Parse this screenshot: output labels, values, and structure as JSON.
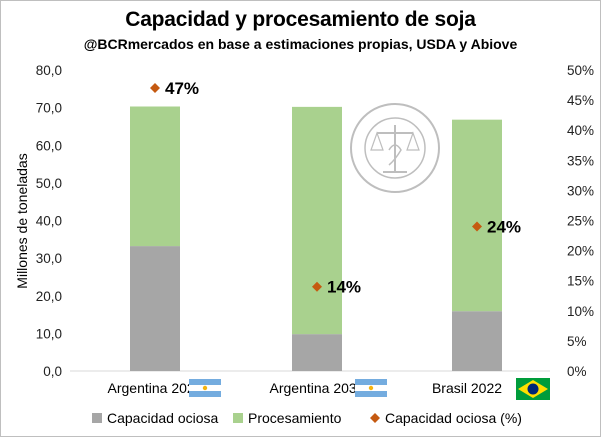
{
  "chart_data": {
    "type": "bar",
    "title": "Capacidad y procesamiento de soja",
    "subtitle": "@BCRmercados en base a estimaciones propias, USDA y Abiove",
    "ylabel": "Millones de toneladas",
    "ylim": [
      0,
      80
    ],
    "y_ticks": [
      "0,0",
      "10,0",
      "20,0",
      "30,0",
      "40,0",
      "50,0",
      "60,0",
      "70,0",
      "80,0"
    ],
    "y2lim": [
      0,
      50
    ],
    "y2_ticks": [
      "0%",
      "5%",
      "10%",
      "15%",
      "20%",
      "25%",
      "30%",
      "35%",
      "40%",
      "45%",
      "50%"
    ],
    "categories": [
      "Argentina 2022",
      "Argentina 2031",
      "Brasil 2022"
    ],
    "stacked": true,
    "series": [
      {
        "name": "Capacidad ociosa",
        "type": "bar",
        "color": "#a6a6a6",
        "values": [
          33.2,
          9.8,
          15.9
        ]
      },
      {
        "name": "Procesamiento",
        "type": "bar",
        "color": "#a9d18e",
        "values": [
          37.1,
          60.4,
          50.9
        ]
      },
      {
        "name": "Capacidad ociosa (%)",
        "type": "marker",
        "axis": "secondary",
        "color": "#c55a11",
        "values": [
          47,
          14,
          24
        ],
        "labels": [
          "47%",
          "14%",
          "24%"
        ]
      }
    ],
    "grid": false,
    "legend": "bottom",
    "flags": [
      "argentina-flag",
      "argentina-flag",
      "brazil-flag"
    ]
  },
  "watermark": "BOLSA DE COMERCIO DE ROSARIO"
}
